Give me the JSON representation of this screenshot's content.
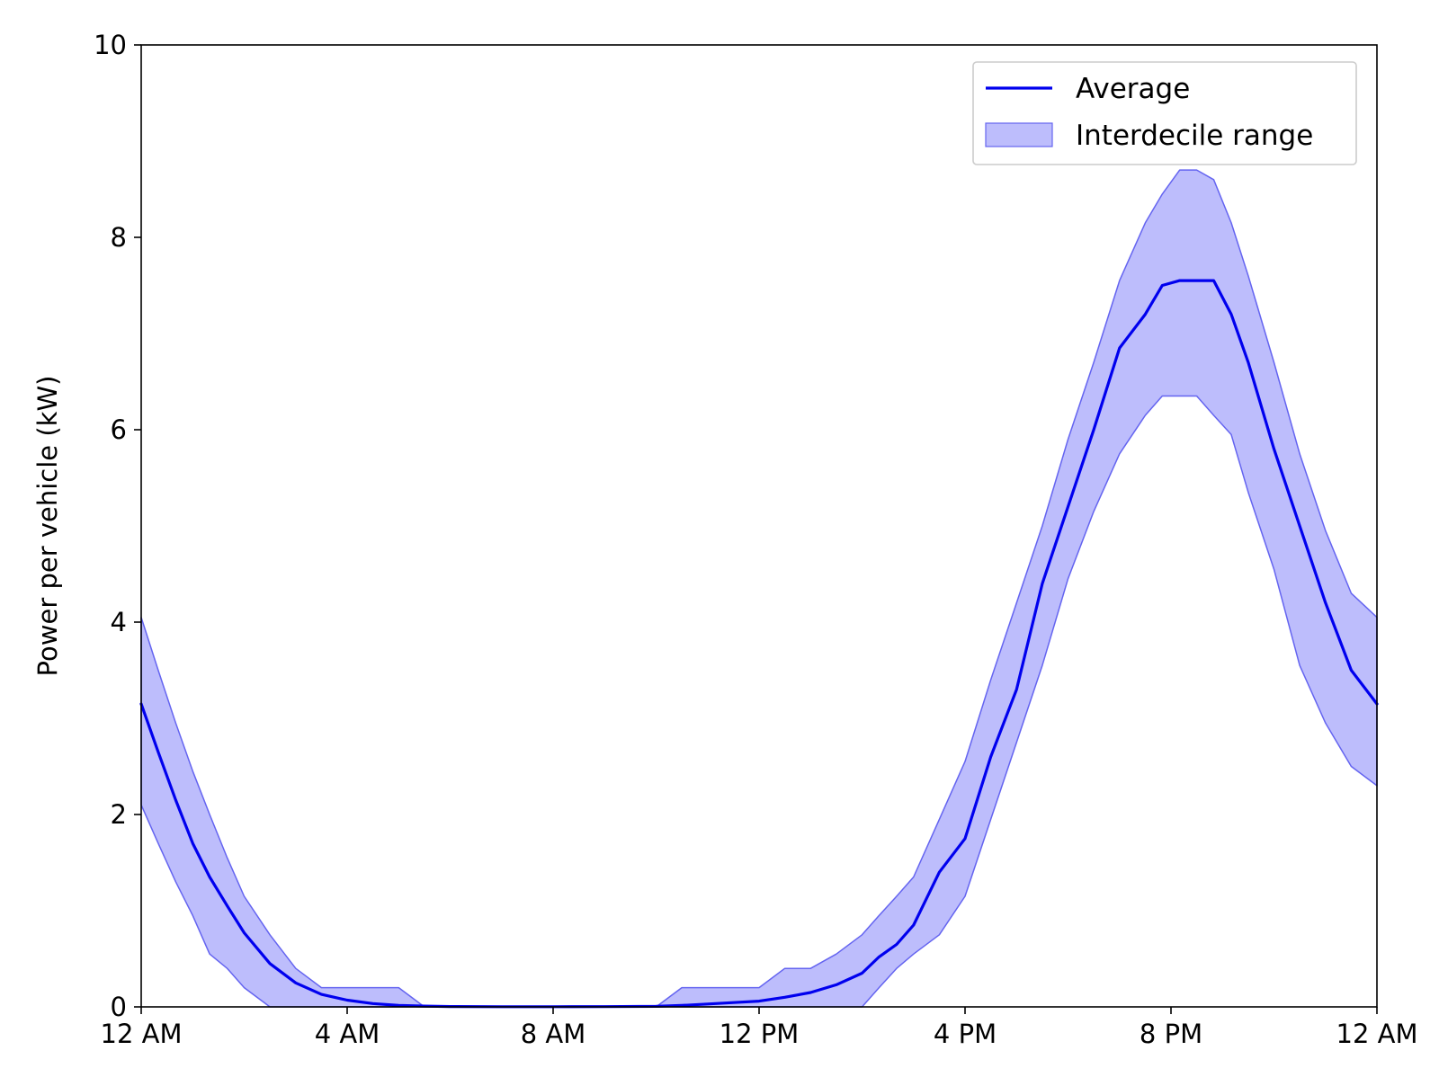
{
  "chart_data": {
    "type": "line",
    "title": "",
    "xlabel": "",
    "ylabel": "Power per vehicle (kW)",
    "xlim": [
      0,
      24
    ],
    "ylim": [
      0,
      10
    ],
    "x_ticks": [
      0,
      4,
      8,
      12,
      16,
      20,
      24
    ],
    "x_tick_labels": [
      "12 AM",
      "4 AM",
      "8 AM",
      "12 PM",
      "4 PM",
      "8 PM",
      "12 AM"
    ],
    "y_ticks": [
      0,
      2,
      4,
      6,
      8,
      10
    ],
    "y_tick_labels": [
      "0",
      "2",
      "4",
      "6",
      "8",
      "10"
    ],
    "grid": false,
    "legend_position": "top-right",
    "colors": {
      "average": "#0000ee",
      "band_fill": "#bdbdfc",
      "band_edge": "#6464f0"
    },
    "series": [
      {
        "name": "Average",
        "kind": "line",
        "x": [
          0,
          0.33,
          0.67,
          1,
          1.33,
          1.67,
          2,
          2.5,
          3,
          3.5,
          4,
          4.5,
          5,
          5.5,
          6,
          7,
          8,
          9,
          10,
          10.5,
          11,
          11.5,
          12,
          12.5,
          13,
          13.5,
          14,
          14.33,
          14.67,
          15,
          15.5,
          16,
          16.5,
          17,
          17.5,
          18,
          18.5,
          19,
          19.5,
          19.83,
          20.17,
          20.5,
          20.83,
          21.17,
          21.5,
          22,
          22.5,
          23,
          23.5,
          24
        ],
        "values": [
          3.15,
          2.65,
          2.15,
          1.7,
          1.35,
          1.05,
          0.77,
          0.45,
          0.25,
          0.13,
          0.07,
          0.035,
          0.015,
          0.008,
          0.004,
          0.002,
          0.002,
          0.003,
          0.006,
          0.015,
          0.03,
          0.045,
          0.06,
          0.1,
          0.15,
          0.23,
          0.35,
          0.52,
          0.65,
          0.85,
          1.4,
          1.75,
          2.6,
          3.3,
          4.4,
          5.2,
          6.0,
          6.85,
          7.2,
          7.5,
          7.55,
          7.55,
          7.55,
          7.2,
          6.7,
          5.8,
          5.0,
          4.2,
          3.5,
          3.15
        ]
      },
      {
        "name": "Interdecile range",
        "kind": "band",
        "x": [
          0,
          0.33,
          0.67,
          1,
          1.33,
          1.67,
          2,
          2.5,
          3,
          3.5,
          4,
          4.5,
          5,
          5.5,
          6,
          7,
          8,
          9,
          10,
          10.5,
          11,
          11.5,
          12,
          12.5,
          13,
          13.5,
          14,
          14.33,
          14.67,
          15,
          15.5,
          16,
          16.5,
          17,
          17.5,
          18,
          18.5,
          19,
          19.5,
          19.83,
          20.17,
          20.5,
          20.83,
          21.17,
          21.5,
          22,
          22.5,
          23,
          23.5,
          24
        ],
        "upper": [
          4.05,
          3.5,
          2.95,
          2.45,
          2.0,
          1.55,
          1.15,
          0.75,
          0.4,
          0.2,
          0.2,
          0.2,
          0.2,
          0.0,
          0.0,
          0.0,
          0.0,
          0.0,
          0.0,
          0.2,
          0.2,
          0.2,
          0.2,
          0.4,
          0.4,
          0.55,
          0.75,
          0.95,
          1.15,
          1.35,
          1.95,
          2.55,
          3.4,
          4.2,
          5.0,
          5.9,
          6.7,
          7.55,
          8.15,
          8.45,
          8.7,
          8.7,
          8.6,
          8.15,
          7.6,
          6.7,
          5.75,
          4.95,
          4.3,
          4.05
        ],
        "lower": [
          2.1,
          1.7,
          1.3,
          0.95,
          0.55,
          0.4,
          0.2,
          0.0,
          0.0,
          0.0,
          0.0,
          0.0,
          0.0,
          0.0,
          0.0,
          0.0,
          0.0,
          0.0,
          0.0,
          0.0,
          0.0,
          0.0,
          0.0,
          0.0,
          0.0,
          0.0,
          0.0,
          0.2,
          0.4,
          0.55,
          0.75,
          1.15,
          1.95,
          2.75,
          3.55,
          4.45,
          5.15,
          5.75,
          6.15,
          6.35,
          6.35,
          6.35,
          6.15,
          5.95,
          5.35,
          4.55,
          3.55,
          2.95,
          2.5,
          2.3
        ]
      }
    ]
  }
}
